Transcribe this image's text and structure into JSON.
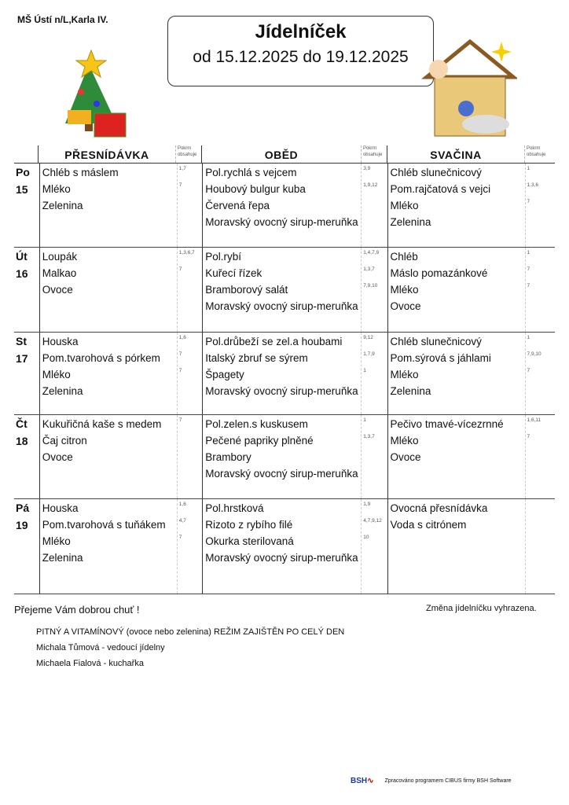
{
  "school": "MŠ Ústí n/L,Karla IV.",
  "title": "Jídelníček",
  "date_range": "od 15.12.2025 do 19.12.2025",
  "columns": [
    {
      "name": "PŘESNÍDÁVKA",
      "allergen_label": "Pokrm obsahuje"
    },
    {
      "name": "OBĚD",
      "allergen_label": "Pokrm obsahuje"
    },
    {
      "name": "SVAČINA",
      "allergen_label": "Pokrm obsahuje"
    }
  ],
  "days": [
    {
      "day": "Po",
      "date": "15",
      "meals": [
        [
          {
            "name": "Chléb s máslem",
            "al": "1,7"
          },
          {
            "name": "Mléko",
            "al": "7"
          },
          {
            "name": "Zelenina",
            "al": ""
          }
        ],
        [
          {
            "name": "Pol.rychlá s vejcem",
            "al": "3,9"
          },
          {
            "name": "Houbový bulgur kuba",
            "al": "1,9,12"
          },
          {
            "name": "Červená řepa",
            "al": ""
          },
          {
            "name": "Moravský ovocný sirup-meruňka",
            "al": ""
          }
        ],
        [
          {
            "name": "Chléb slunečnicový",
            "al": "1"
          },
          {
            "name": "Pom.rajčatová s vejci",
            "al": "1,3,6"
          },
          {
            "name": "Mléko",
            "al": "7"
          },
          {
            "name": "Zelenina",
            "al": ""
          }
        ]
      ]
    },
    {
      "day": "Út",
      "date": "16",
      "meals": [
        [
          {
            "name": "Loupák",
            "al": "1,3,6,7"
          },
          {
            "name": "Malkao",
            "al": "7"
          },
          {
            "name": "Ovoce",
            "al": ""
          }
        ],
        [
          {
            "name": "Pol.rybí",
            "al": "1,4,7,9"
          },
          {
            "name": "Kuřecí řízek",
            "al": "1,3,7"
          },
          {
            "name": "Bramborový salát",
            "al": "7,9,10"
          },
          {
            "name": "Moravský ovocný sirup-meruňka",
            "al": ""
          }
        ],
        [
          {
            "name": "Chléb",
            "al": "1"
          },
          {
            "name": "Máslo pomazánkové",
            "al": "7"
          },
          {
            "name": "Mléko",
            "al": "7"
          },
          {
            "name": "Ovoce",
            "al": ""
          }
        ]
      ]
    },
    {
      "day": "St",
      "date": "17",
      "meals": [
        [
          {
            "name": "Houska",
            "al": "1,6"
          },
          {
            "name": "Pom.tvarohová s pórkem",
            "al": "7"
          },
          {
            "name": "Mléko",
            "al": "7"
          },
          {
            "name": "Zelenina",
            "al": ""
          }
        ],
        [
          {
            "name": "Pol.drůbeží se zel.a houbami",
            "al": "9,12"
          },
          {
            "name": "Italský zbruf se sýrem",
            "al": "1,7,9"
          },
          {
            "name": "Špagety",
            "al": "1"
          },
          {
            "name": "Moravský ovocný sirup-meruňka",
            "al": ""
          }
        ],
        [
          {
            "name": "Chléb slunečnicový",
            "al": "1"
          },
          {
            "name": "Pom.sýrová s jáhlami",
            "al": "7,9,10"
          },
          {
            "name": "Mléko",
            "al": "7"
          },
          {
            "name": "Zelenina",
            "al": ""
          }
        ]
      ]
    },
    {
      "day": "Čt",
      "date": "18",
      "meals": [
        [
          {
            "name": "Kukuřičná kaše s medem",
            "al": "7"
          },
          {
            "name": "Čaj citron",
            "al": ""
          },
          {
            "name": "Ovoce",
            "al": ""
          }
        ],
        [
          {
            "name": "Pol.zelen.s kuskusem",
            "al": "1"
          },
          {
            "name": "Pečené papriky plněné",
            "al": "1,3,7"
          },
          {
            "name": "Brambory",
            "al": ""
          },
          {
            "name": "Moravský ovocný sirup-meruňka",
            "al": ""
          }
        ],
        [
          {
            "name": "Pečivo tmavé-vícezrnné",
            "al": "1,6,11"
          },
          {
            "name": "Mléko",
            "al": "7"
          },
          {
            "name": "Ovoce",
            "al": ""
          }
        ]
      ]
    },
    {
      "day": "Pá",
      "date": "19",
      "meals": [
        [
          {
            "name": "Houska",
            "al": "1,6"
          },
          {
            "name": "Pom.tvarohová s tuňákem",
            "al": "4,7"
          },
          {
            "name": "Mléko",
            "al": "7"
          },
          {
            "name": "Zelenina",
            "al": ""
          }
        ],
        [
          {
            "name": "Pol.hrstková",
            "al": "1,9"
          },
          {
            "name": "Rizoto z rybího filé",
            "al": "4,7,9,12"
          },
          {
            "name": "Okurka sterilovaná",
            "al": "10"
          },
          {
            "name": "Moravský ovocný sirup-meruňka",
            "al": ""
          }
        ],
        [
          {
            "name": "Ovocná přesnídávka",
            "al": ""
          },
          {
            "name": "Voda s citrónem",
            "al": ""
          }
        ]
      ]
    }
  ],
  "footer": {
    "wish": "Přejeme Vám dobrou chuť !",
    "note": "Změna jídelníčku vyhrazena.",
    "lines": [
      "PITNÝ A VITAMÍNOVÝ (ovoce nebo zelenina) REŽIM ZAJIŠTĚN PO CELÝ DEN",
      "Michala Tůmová - vedoucí jídelny",
      "Michaela Fialová - kuchařka"
    ],
    "software": "Zpracováno programem CIBUS firmy BSH Software",
    "logo": "BSH Software"
  },
  "row_heights_note_removed": null
}
